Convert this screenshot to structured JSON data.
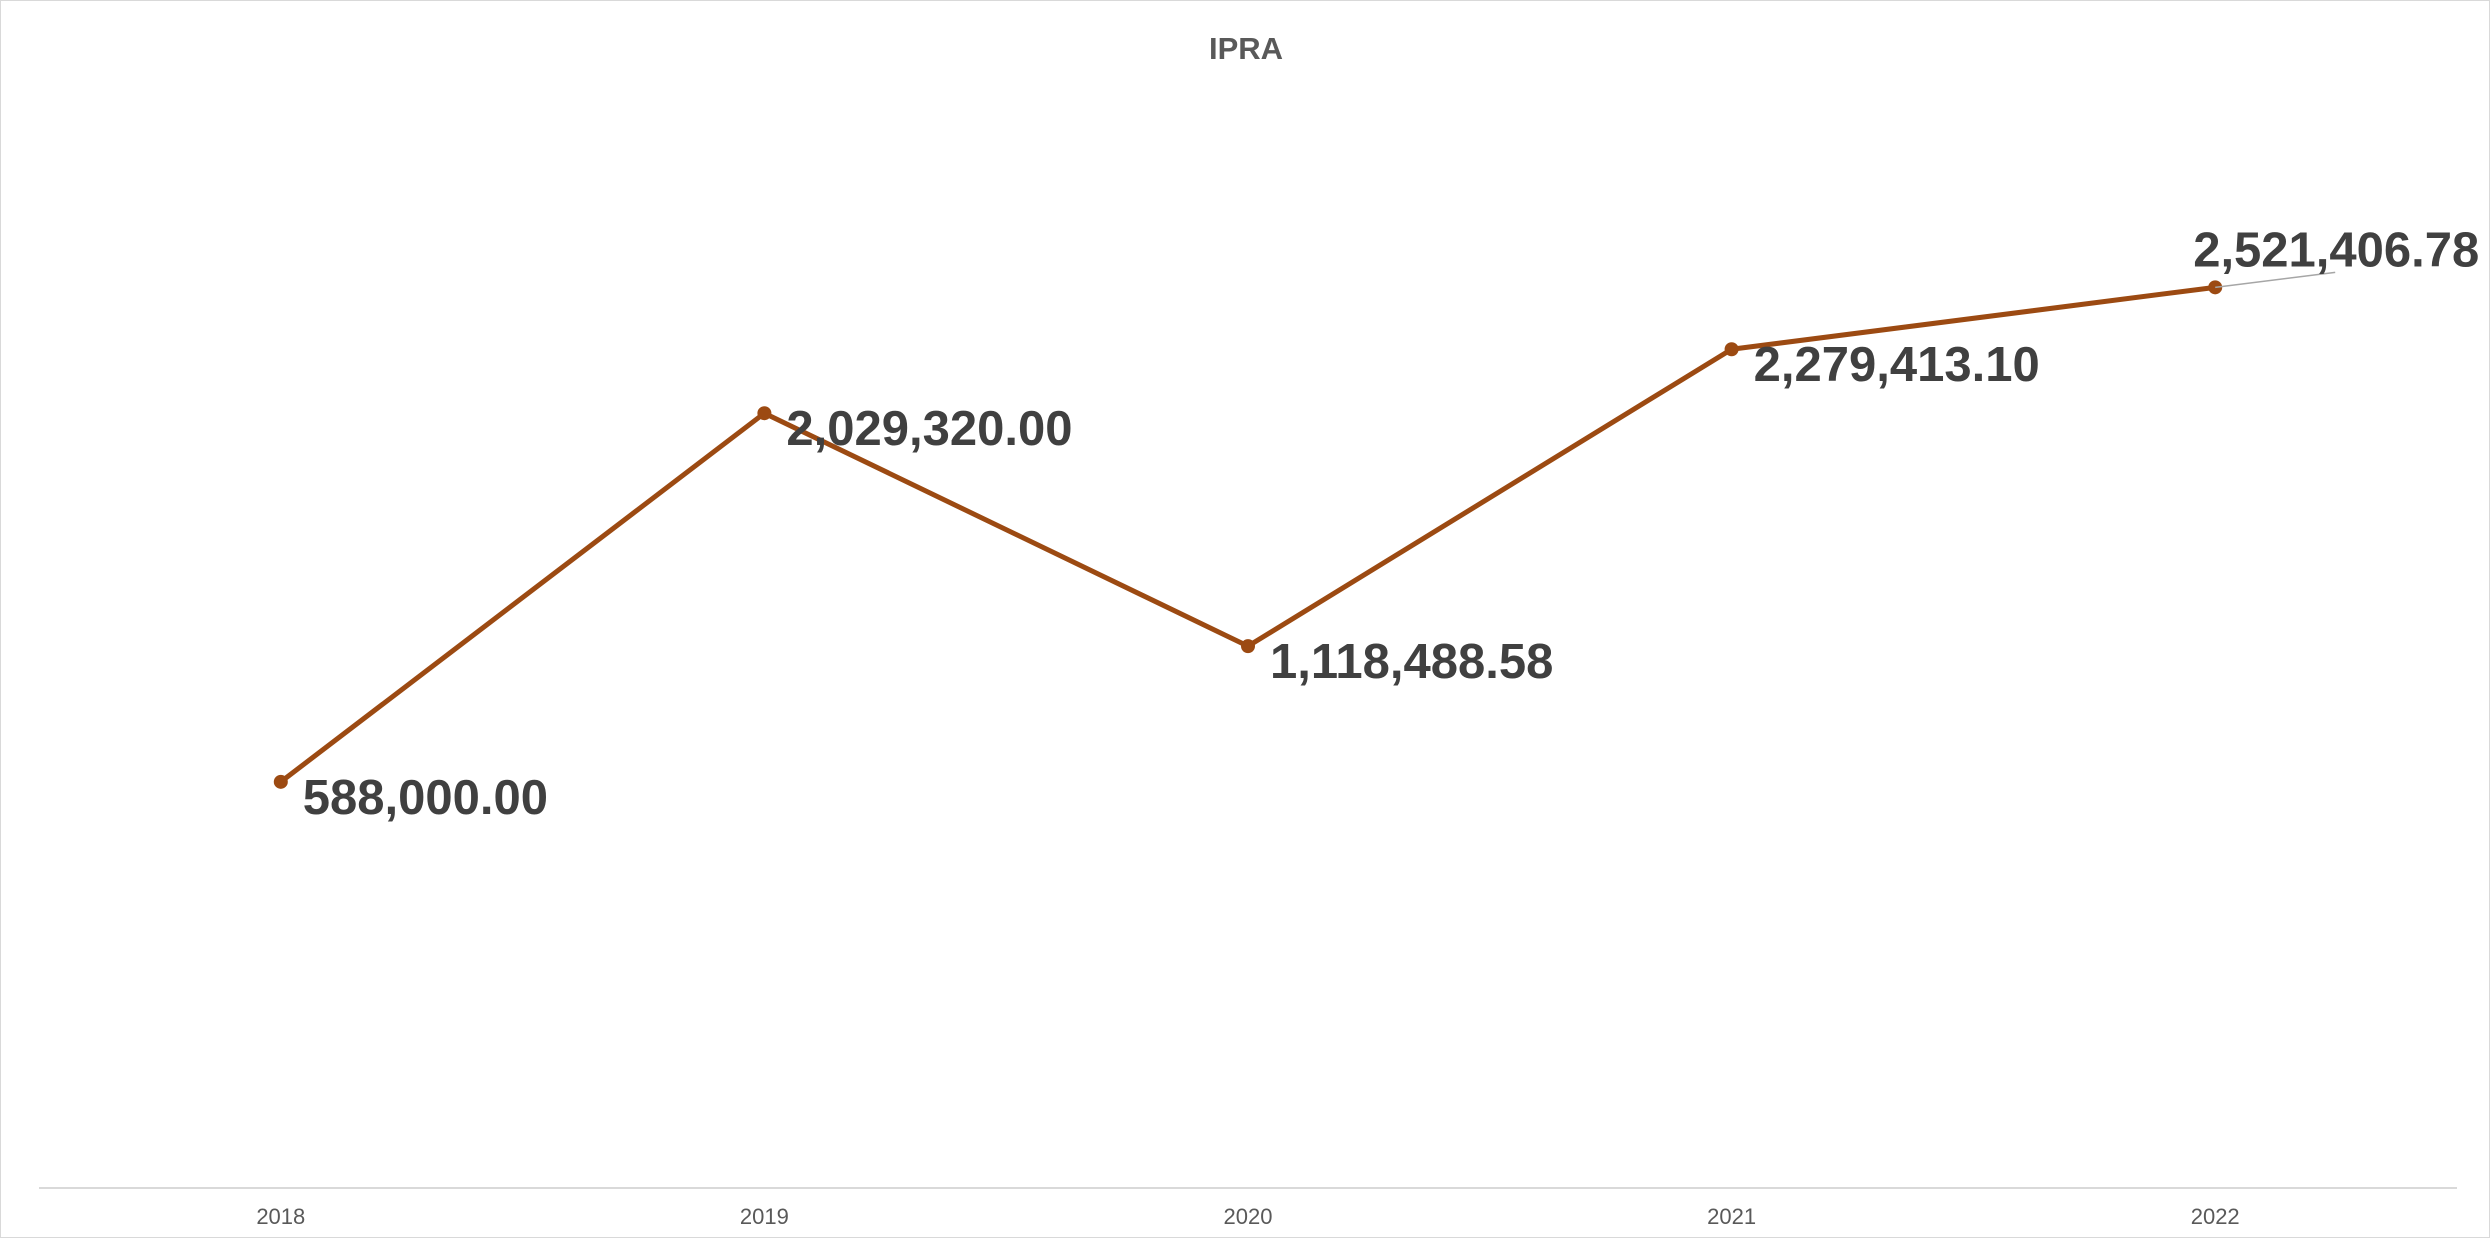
{
  "chart_data": {
    "type": "line",
    "title": "IPRA",
    "xlabel": "",
    "ylabel": "",
    "categories": [
      "2018",
      "2019",
      "2020",
      "2021",
      "2022"
    ],
    "series": [
      {
        "values": [
          588000.0,
          2029320.0,
          1118488.58,
          2279413.1,
          2521406.78
        ],
        "color": "#9C4A12"
      }
    ],
    "data_labels": [
      "588,000.00",
      "2,029,320.00",
      "1,118,488.58",
      "2,279,413.10",
      "2,521,406.78"
    ],
    "ylim": [
      -1000000,
      3250000
    ],
    "grid": false,
    "legend": "none",
    "axis_color": "#d9d9d9",
    "leader_line_color": "#a6a6a6"
  }
}
